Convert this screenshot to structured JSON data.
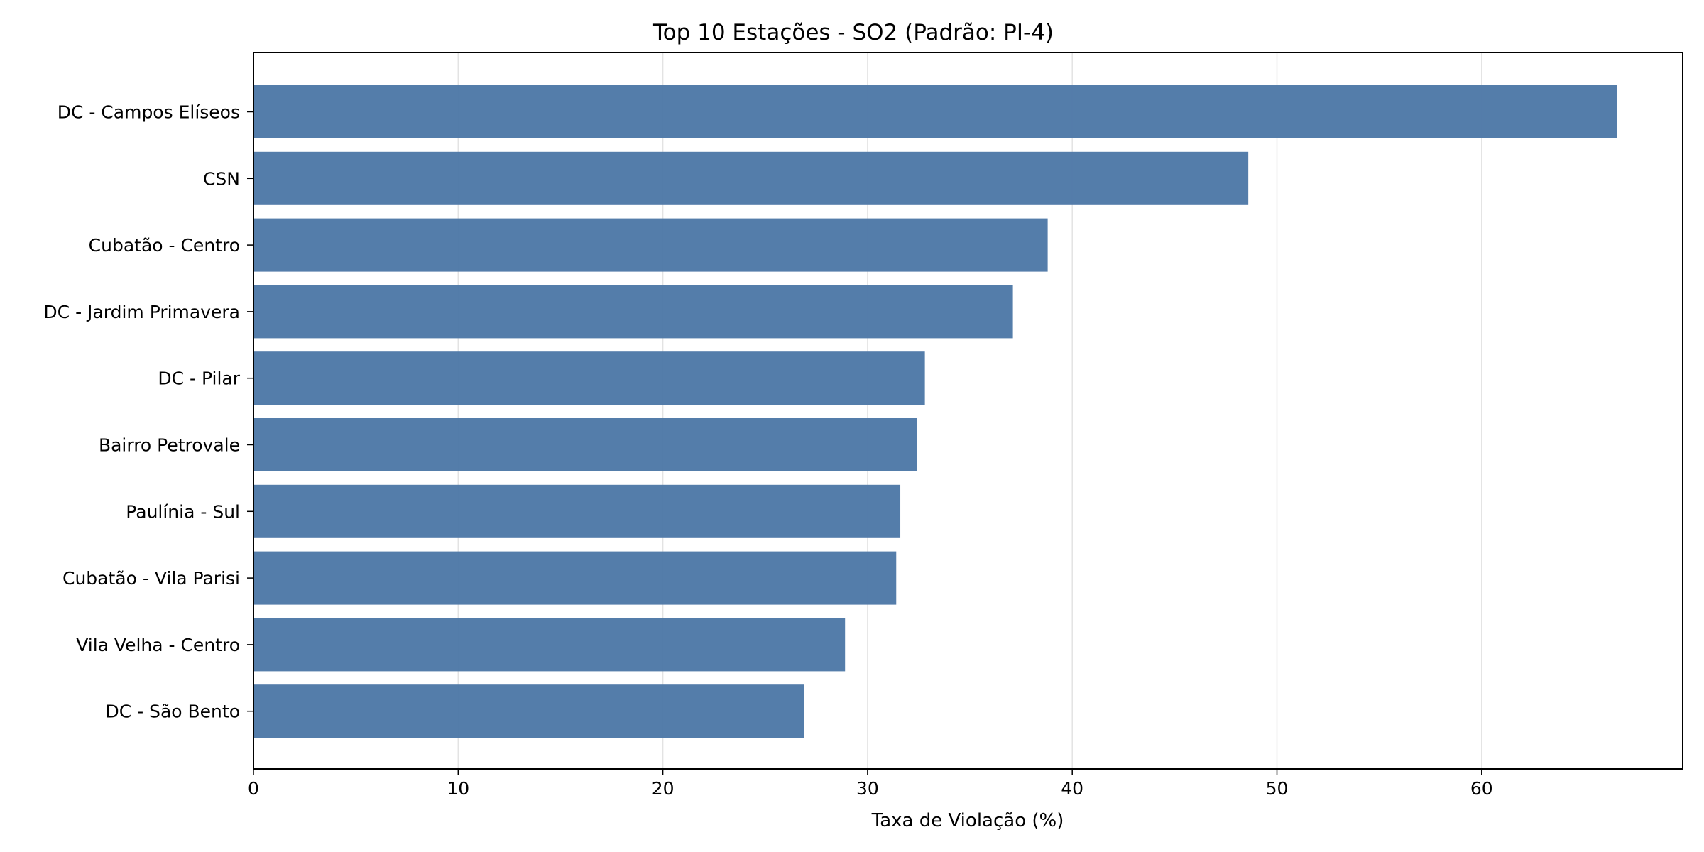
{
  "chart_data": {
    "type": "bar",
    "orientation": "horizontal",
    "title": "Top 10 Estações - SO2 (Padrão: PI-4)",
    "xlabel": "Taxa de Violação (%)",
    "ylabel": "",
    "xlim": [
      0,
      70
    ],
    "xticks": [
      0,
      10,
      20,
      30,
      40,
      50,
      60
    ],
    "grid": "vertical",
    "color": "#4e79a7",
    "categories": [
      "DC - Campos Elíseos",
      "CSN",
      "Cubatão - Centro",
      "DC - Jardim Primavera",
      "DC - Pilar",
      "Bairro Petrovale",
      "Paulínia - Sul",
      "Cubatão - Vila Parisi",
      "Vila Velha - Centro",
      "DC - São Bento"
    ],
    "values": [
      66.6,
      48.6,
      38.8,
      37.1,
      32.8,
      32.4,
      31.6,
      31.4,
      28.9,
      26.9
    ]
  }
}
